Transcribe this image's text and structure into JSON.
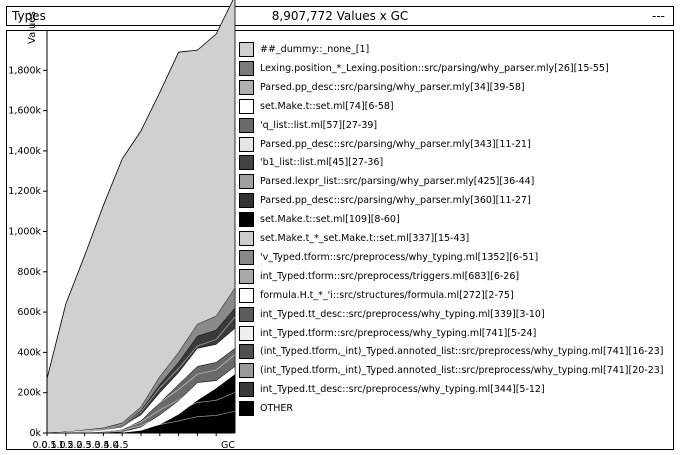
{
  "header": {
    "left_label": "Types",
    "center_label": "8,907,772 Values x GC",
    "right_label": "---"
  },
  "chart_data": {
    "type": "area",
    "ylabel": "Values",
    "x_ticks": [
      "0.0",
      "0.5",
      "1.0",
      "1.5",
      "2.0",
      "2.5",
      "3.0",
      "3.5",
      "4.0",
      "4.5",
      "GC"
    ],
    "y_ticks": [
      "0k",
      "200k",
      "400k",
      "600k",
      "800k",
      "1,000k",
      "1,200k",
      "1,400k",
      "1,600k",
      "1,800k"
    ],
    "ylim": [
      0,
      2000000
    ],
    "xlim": [
      0,
      5.0
    ],
    "x": [
      0,
      0.5,
      1.0,
      1.5,
      2.0,
      2.5,
      3.0,
      3.5,
      4.0,
      4.5,
      5.0
    ],
    "total": [
      270000,
      640000,
      880000,
      1130000,
      1360000,
      1500000,
      1690000,
      1890000,
      1900000,
      1980000,
      2170000
    ],
    "stacked_band_tops": [
      [
        0,
        0,
        0,
        0,
        0,
        10000,
        40000,
        90000,
        160000,
        220000,
        290000
      ],
      [
        0,
        0,
        0,
        0,
        5000,
        30000,
        90000,
        160000,
        250000,
        260000,
        330000
      ],
      [
        0,
        0,
        0,
        5000,
        15000,
        60000,
        150000,
        240000,
        330000,
        350000,
        420000
      ],
      [
        0,
        0,
        5000,
        15000,
        30000,
        90000,
        200000,
        300000,
        420000,
        440000,
        520000
      ],
      [
        0,
        5000,
        10000,
        20000,
        40000,
        110000,
        240000,
        350000,
        480000,
        510000,
        620000
      ],
      [
        0,
        5000,
        15000,
        25000,
        50000,
        130000,
        280000,
        400000,
        540000,
        580000,
        720000
      ]
    ],
    "legend_placement": "right",
    "legend": [
      {
        "name": "##_dummy::_none_[1]",
        "color": "#d0d0d0"
      },
      {
        "name": "Lexing.position_*_Lexing.position::src/parsing/why_parser.mly[26][15-55]",
        "color": "#7a7a7a"
      },
      {
        "name": "Parsed.pp_desc::src/parsing/why_parser.mly[34][39-58]",
        "color": "#b0b0b0"
      },
      {
        "name": "set.Make.t::set.ml[74][6-58]",
        "color": "#ffffff"
      },
      {
        "name": "'q_list::list.ml[57][27-39]",
        "color": "#6a6a6a"
      },
      {
        "name": "Parsed.pp_desc::src/parsing/why_parser.mly[343][11-21]",
        "color": "#e6e6e6"
      },
      {
        "name": "'b1_list::list.ml[45][27-36]",
        "color": "#444444"
      },
      {
        "name": "Parsed.lexpr_list::src/parsing/why_parser.mly[425][36-44]",
        "color": "#a0a0a0"
      },
      {
        "name": "Parsed.pp_desc::src/parsing/why_parser.mly[360][11-27]",
        "color": "#333333"
      },
      {
        "name": "set.Make.t::set.ml[109][8-60]",
        "color": "#000000"
      },
      {
        "name": "set.Make.t_*_set.Make.t::set.ml[337][15-43]",
        "color": "#cccccc"
      },
      {
        "name": "'v_Typed.tform::src/preprocess/why_typing.ml[1352][6-51]",
        "color": "#888888"
      },
      {
        "name": "int_Typed.tform::src/preprocess/triggers.ml[683][6-26]",
        "color": "#a8a8a8"
      },
      {
        "name": "formula.H.t_*_'i::src/structures/formula.ml[272][2-75]",
        "color": "#ffffff"
      },
      {
        "name": "int_Typed.tt_desc::src/preprocess/why_typing.ml[339][3-10]",
        "color": "#5c5c5c"
      },
      {
        "name": "int_Typed.tform::src/preprocess/why_typing.ml[741][5-24]",
        "color": "#f0f0f0"
      },
      {
        "name": "(int_Typed.tform,_int)_Typed.annoted_list::src/preprocess/why_typing.ml[741][16-23]",
        "color": "#505050"
      },
      {
        "name": "(int_Typed.tform,_int)_Typed.annoted_list::src/preprocess/why_typing.ml[741][20-23]",
        "color": "#9a9a9a"
      },
      {
        "name": "int_Typed.tt_desc::src/preprocess/why_typing.ml[344][5-12]",
        "color": "#3a3a3a"
      },
      {
        "name": "OTHER",
        "color": "#000000"
      }
    ]
  }
}
